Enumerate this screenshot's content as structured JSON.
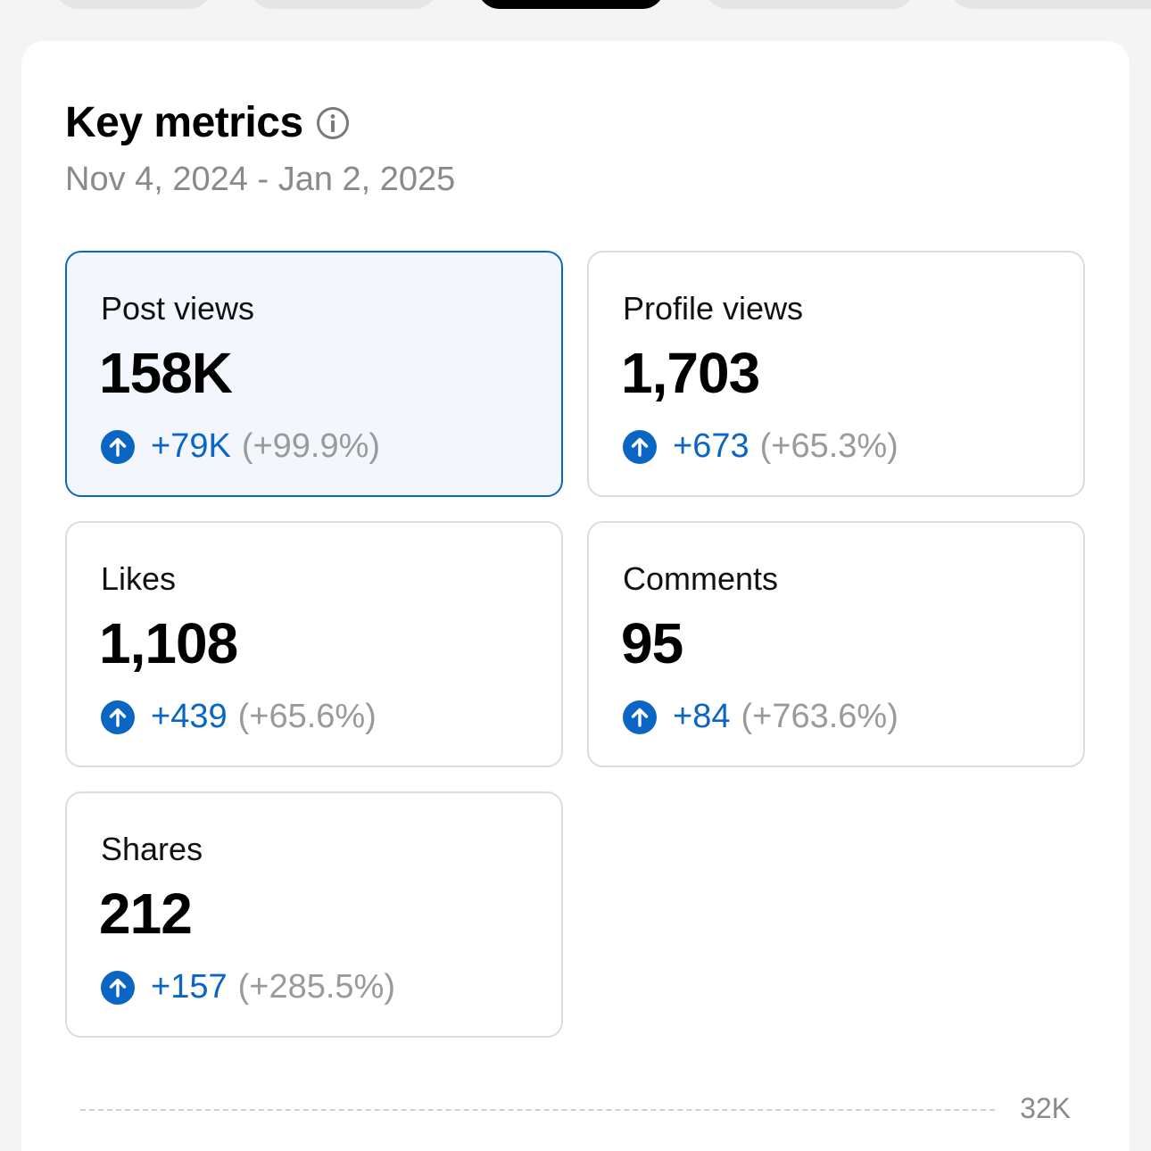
{
  "header": {
    "title": "Key metrics",
    "info_icon": "info-circle-icon",
    "date_range": "Nov 4, 2024 - Jan 2, 2025"
  },
  "metrics": [
    {
      "label": "Post views",
      "value": "158K",
      "change": "+79K",
      "change_pct": "(+99.9%)",
      "selected": true
    },
    {
      "label": "Profile views",
      "value": "1,703",
      "change": "+673",
      "change_pct": "(+65.3%)",
      "selected": false
    },
    {
      "label": "Likes",
      "value": "1,108",
      "change": "+439",
      "change_pct": "(+65.6%)",
      "selected": false
    },
    {
      "label": "Comments",
      "value": "95",
      "change": "+84",
      "change_pct": "(+763.6%)",
      "selected": false
    },
    {
      "label": "Shares",
      "value": "212",
      "change": "+157",
      "change_pct": "(+285.5%)",
      "selected": false
    }
  ],
  "chart": {
    "y_tick_label": "32K"
  },
  "colors": {
    "accent": "#0a66c2",
    "selected_bg": "#f3f7fd",
    "muted_text": "#8a8a8a"
  }
}
